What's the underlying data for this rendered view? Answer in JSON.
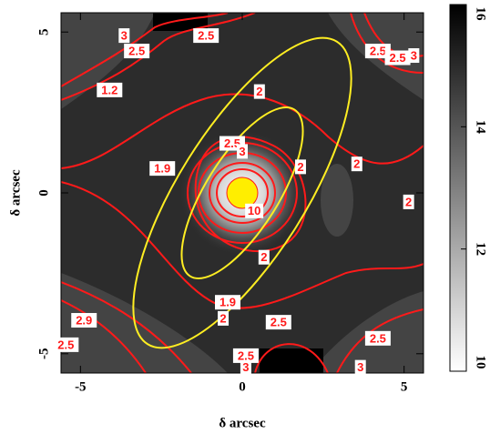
{
  "chart_data": {
    "type": "image",
    "xlabel": "δ arcsec",
    "ylabel": "δ arcsec",
    "xlim": [
      -5.6,
      5.6
    ],
    "ylim": [
      -5.6,
      5.6
    ],
    "xticks": [
      -5,
      0,
      5
    ],
    "yticks": [
      -5,
      0,
      5
    ],
    "contour_color": "#ff1a1a",
    "ellipse_color": "#ffee22",
    "colorbar": {
      "lim": [
        10,
        16
      ],
      "ticks": [
        10,
        12,
        14,
        16
      ]
    },
    "annotations": [
      {
        "text": "3",
        "x": -3.65,
        "y": 4.89
      },
      {
        "text": "2.5",
        "x": -3.26,
        "y": 4.41
      },
      {
        "text": "2.5",
        "x": -1.12,
        "y": 4.89
      },
      {
        "text": "1.2",
        "x": -4.1,
        "y": 3.2
      },
      {
        "text": "2",
        "x": 0.53,
        "y": 3.15
      },
      {
        "text": "2.5",
        "x": 4.19,
        "y": 4.41
      },
      {
        "text": "2.5",
        "x": 4.8,
        "y": 4.2
      },
      {
        "text": "3",
        "x": 5.3,
        "y": 4.27
      },
      {
        "text": "2.5",
        "x": -0.31,
        "y": 1.54
      },
      {
        "text": "3",
        "x": 0.0,
        "y": 1.29
      },
      {
        "text": "1.9",
        "x": -2.47,
        "y": 0.76
      },
      {
        "text": "2",
        "x": 1.8,
        "y": 0.81
      },
      {
        "text": "2",
        "x": 3.54,
        "y": 0.9
      },
      {
        "text": "10",
        "x": 0.37,
        "y": -0.56
      },
      {
        "text": "2",
        "x": 5.14,
        "y": -0.28
      },
      {
        "text": "2",
        "x": 0.67,
        "y": -2.0
      },
      {
        "text": "1.9",
        "x": -0.45,
        "y": -3.4
      },
      {
        "text": "2",
        "x": -0.59,
        "y": -3.9
      },
      {
        "text": "2.9",
        "x": -4.89,
        "y": -3.96
      },
      {
        "text": "2.5",
        "x": -5.45,
        "y": -4.72
      },
      {
        "text": "2.5",
        "x": 1.12,
        "y": -4.02
      },
      {
        "text": "2.5",
        "x": 4.19,
        "y": -4.52
      },
      {
        "text": "2.5",
        "x": 0.11,
        "y": -5.06
      },
      {
        "text": "3",
        "x": 0.11,
        "y": -5.42
      },
      {
        "text": "3",
        "x": 3.65,
        "y": -5.42
      }
    ]
  }
}
